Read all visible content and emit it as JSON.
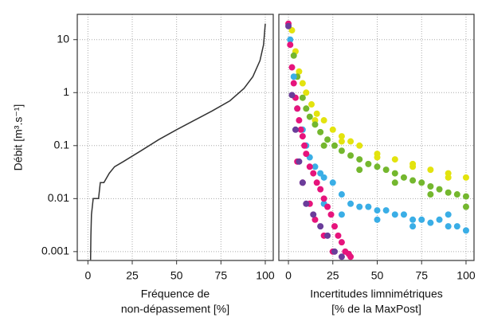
{
  "chart_data": [
    {
      "type": "line",
      "ylabel": "Débit [m³.s⁻¹]",
      "xlabel": [
        "Fréquence de",
        "non-dépassement [%]"
      ],
      "log_y": true,
      "grid": true,
      "xlim": [
        -6,
        104.5
      ],
      "ylim": [
        0.00068,
        30
      ],
      "xticks": [
        0,
        25,
        50,
        75,
        100
      ],
      "yticks": [
        0.001,
        0.01,
        0.1,
        1,
        10
      ],
      "series": [
        {
          "color": "#333333",
          "x": [
            1.5,
            1.7,
            2,
            3,
            6,
            7,
            9,
            12,
            15,
            20,
            30,
            40,
            50,
            60,
            70,
            80,
            88,
            93,
            97,
            99,
            100
          ],
          "values": [
            0.0007,
            0.002,
            0.005,
            0.01,
            0.01,
            0.02,
            0.02,
            0.03,
            0.04,
            0.05,
            0.08,
            0.13,
            0.2,
            0.3,
            0.45,
            0.7,
            1.2,
            2,
            4,
            8,
            20
          ]
        }
      ]
    },
    {
      "type": "scatter",
      "xlabel": [
        "Incertitudes limnimétriques",
        "[% de la MaxPost]"
      ],
      "log_y": true,
      "grid": true,
      "show_yticklabels": false,
      "xlim": [
        -5.4,
        104.5
      ],
      "ylim": [
        0.00068,
        30
      ],
      "xticks": [
        0,
        25,
        50,
        75,
        100
      ],
      "yticks": [
        0.001,
        0.01,
        0.1,
        1,
        10
      ],
      "series": [
        {
          "color": "#e3e30e",
          "x": [
            2,
            4,
            6,
            8,
            10,
            13,
            16,
            20,
            25,
            30,
            35,
            40,
            50,
            60,
            70,
            80,
            90,
            100,
            15,
            30,
            50,
            70,
            90
          ],
          "values": [
            15,
            6,
            2.5,
            1.5,
            1,
            0.6,
            0.4,
            0.3,
            0.2,
            0.15,
            0.12,
            0.1,
            0.07,
            0.055,
            0.045,
            0.035,
            0.03,
            0.025,
            0.3,
            0.12,
            0.06,
            0.04,
            0.025
          ]
        },
        {
          "color": "#74b72e",
          "x": [
            3,
            5,
            8,
            10,
            12,
            15,
            18,
            22,
            26,
            30,
            35,
            40,
            45,
            50,
            55,
            60,
            65,
            70,
            75,
            80,
            85,
            90,
            95,
            100,
            20,
            40,
            60,
            80,
            100
          ],
          "values": [
            5,
            2,
            0.8,
            0.5,
            0.35,
            0.25,
            0.18,
            0.13,
            0.1,
            0.08,
            0.065,
            0.055,
            0.045,
            0.04,
            0.035,
            0.03,
            0.025,
            0.022,
            0.02,
            0.017,
            0.015,
            0.013,
            0.012,
            0.011,
            0.1,
            0.035,
            0.02,
            0.012,
            0.007
          ]
        },
        {
          "color": "#3aaee6",
          "x": [
            1,
            3,
            5,
            8,
            10,
            12,
            15,
            18,
            20,
            25,
            30,
            35,
            40,
            45,
            50,
            55,
            60,
            65,
            70,
            75,
            80,
            85,
            90,
            95,
            100,
            20,
            30,
            50,
            70,
            90
          ],
          "values": [
            10,
            2,
            0.5,
            0.2,
            0.1,
            0.06,
            0.04,
            0.03,
            0.025,
            0.02,
            0.012,
            0.008,
            0.007,
            0.007,
            0.006,
            0.006,
            0.005,
            0.005,
            0.004,
            0.004,
            0.0035,
            0.004,
            0.003,
            0.003,
            0.0025,
            0.008,
            0.005,
            0.004,
            0.003,
            0.005
          ]
        },
        {
          "color": "#e6147c",
          "x": [
            0,
            1,
            2,
            3,
            4,
            5,
            6,
            7,
            8,
            9,
            10,
            12,
            14,
            16,
            18,
            20,
            22,
            24,
            26,
            28,
            30,
            32,
            34,
            35,
            5,
            8,
            12,
            15,
            20,
            25
          ],
          "values": [
            20,
            8,
            3,
            1.5,
            0.8,
            0.5,
            0.3,
            0.2,
            0.15,
            0.1,
            0.07,
            0.04,
            0.03,
            0.02,
            0.015,
            0.01,
            0.007,
            0.005,
            0.003,
            0.002,
            0.0015,
            0.001,
            0.0009,
            0.0008,
            0.05,
            0.02,
            0.008,
            0.004,
            0.002,
            0.001
          ]
        },
        {
          "color": "#6a3d9a",
          "x": [
            0,
            2,
            4,
            6,
            8,
            10,
            14,
            18,
            22,
            26,
            30
          ],
          "values": [
            18,
            0.9,
            0.2,
            0.05,
            0.02,
            0.008,
            0.005,
            0.003,
            0.002,
            0.001,
            0.0008
          ]
        }
      ]
    }
  ]
}
